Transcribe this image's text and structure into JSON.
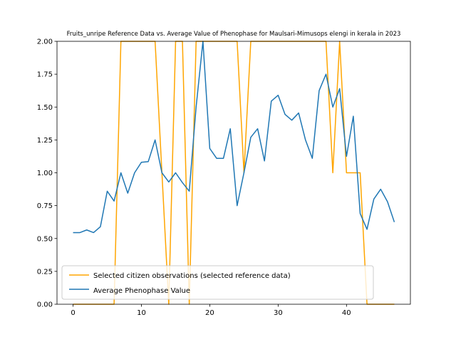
{
  "chart_data": {
    "type": "line",
    "title": "Fruits_unripe Reference Data vs. Average Value of Phenophase for Maulsari-Mimusops elengi in kerala in 2023",
    "xlabel": "",
    "ylabel": "",
    "xlim": [
      -2.35,
      49.35
    ],
    "ylim": [
      0,
      2.0
    ],
    "xticks": [
      0,
      10,
      20,
      30,
      40
    ],
    "yticks": [
      0.0,
      0.25,
      0.5,
      0.75,
      1.0,
      1.25,
      1.5,
      1.75,
      2.0
    ],
    "ytick_labels": [
      "0.00",
      "0.25",
      "0.50",
      "0.75",
      "1.00",
      "1.25",
      "1.50",
      "1.75",
      "2.00"
    ],
    "grid": false,
    "legend_position": "lower-left",
    "series": [
      {
        "name": "Selected citizen observations (selected reference data)",
        "color": "#FFA500",
        "x": [
          0,
          1,
          2,
          3,
          4,
          5,
          6,
          7,
          8,
          9,
          10,
          11,
          12,
          13,
          14,
          15,
          16,
          17,
          18,
          19,
          20,
          21,
          22,
          23,
          24,
          25,
          26,
          27,
          28,
          29,
          30,
          31,
          32,
          33,
          34,
          35,
          36,
          37,
          38,
          39,
          40,
          41,
          42,
          43,
          44,
          45,
          46,
          47
        ],
        "y": [
          0,
          0,
          0,
          0,
          0,
          0,
          0,
          2,
          2,
          2,
          2,
          2,
          2,
          1,
          0,
          2,
          2,
          0,
          2,
          2,
          2,
          2,
          2,
          2,
          2,
          1,
          2,
          2,
          2,
          2,
          2,
          2,
          2,
          2,
          2,
          2,
          2,
          2,
          1,
          2,
          1,
          1,
          1,
          0,
          0,
          0,
          0,
          0
        ]
      },
      {
        "name": "Average Phenophase Value",
        "color": "#1f77b4",
        "x": [
          0,
          1,
          2,
          3,
          4,
          5,
          6,
          7,
          8,
          9,
          10,
          11,
          12,
          13,
          14,
          15,
          16,
          17,
          18,
          19,
          20,
          21,
          22,
          23,
          24,
          25,
          26,
          27,
          28,
          29,
          30,
          31,
          32,
          33,
          34,
          35,
          36,
          37,
          38,
          39,
          40,
          41,
          42,
          43,
          44,
          45,
          46,
          47
        ],
        "y": [
          0.545,
          0.545,
          0.565,
          0.545,
          0.59,
          0.86,
          0.785,
          1.0,
          0.845,
          1.0,
          1.08,
          1.085,
          1.25,
          1.0,
          0.93,
          1.0,
          0.925,
          0.86,
          1.5,
          2.0,
          1.185,
          1.11,
          1.11,
          1.335,
          0.75,
          1.0,
          1.27,
          1.335,
          1.09,
          1.545,
          1.59,
          1.445,
          1.4,
          1.455,
          1.25,
          1.11,
          1.625,
          1.75,
          1.5,
          1.64,
          1.125,
          1.43,
          0.69,
          0.57,
          0.8,
          0.875,
          0.78,
          0.625
        ]
      }
    ]
  }
}
